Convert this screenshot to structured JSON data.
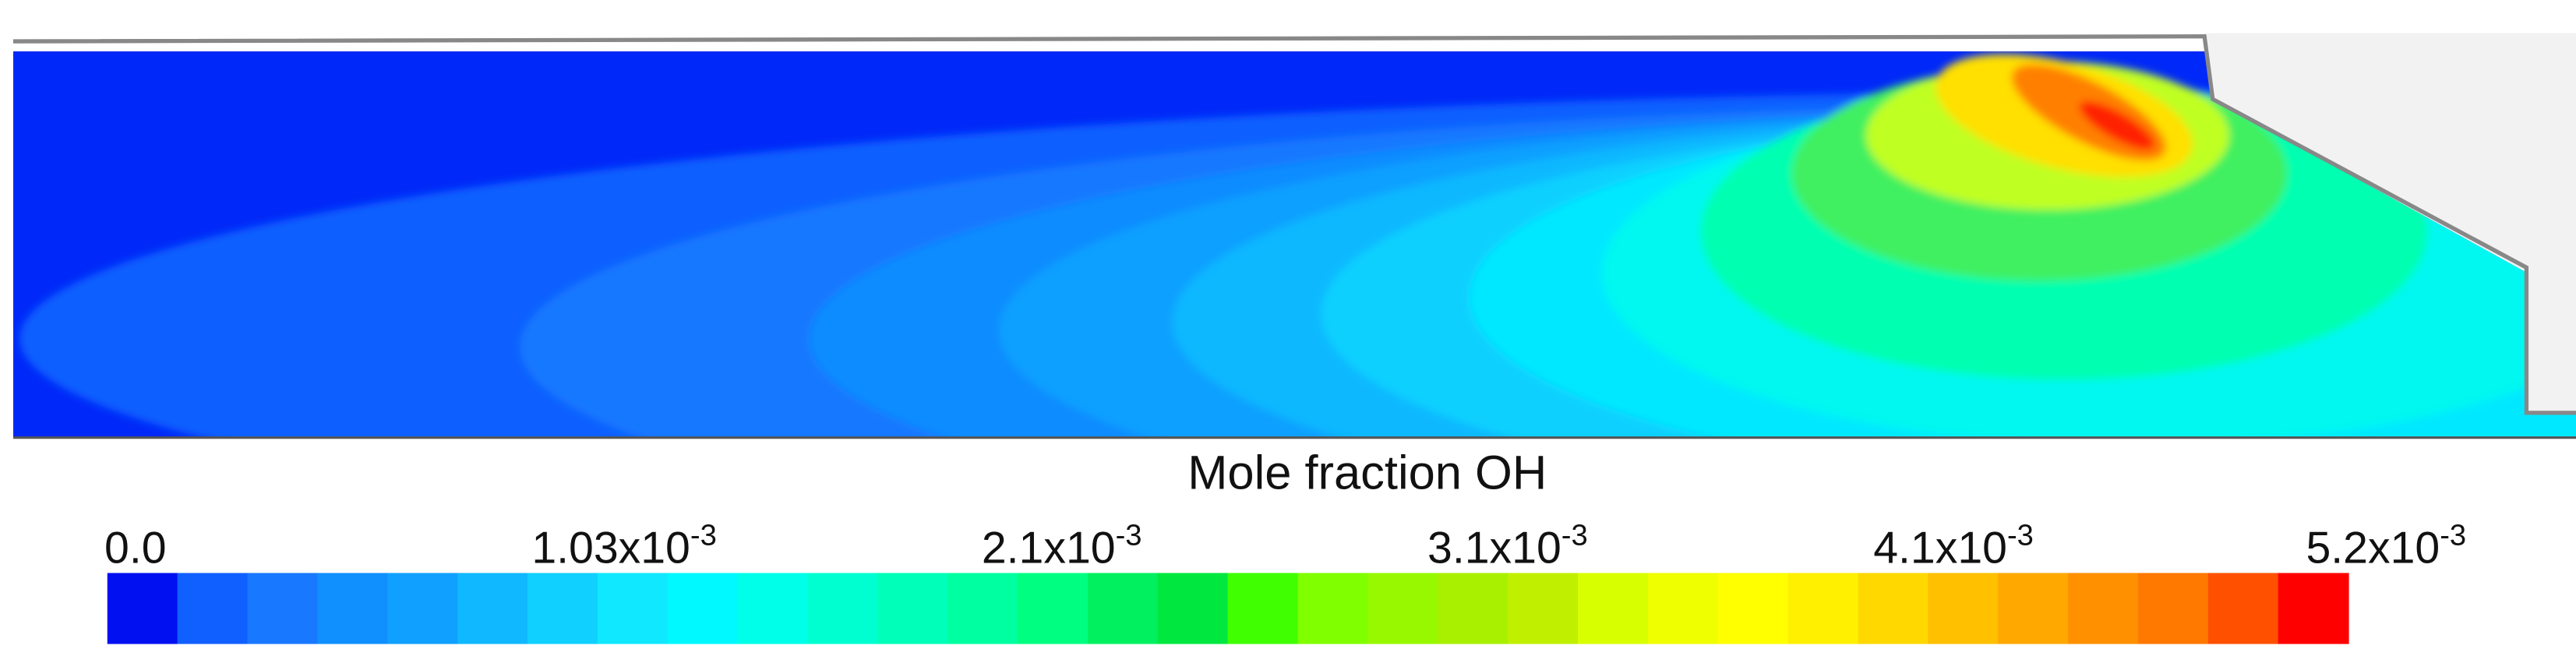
{
  "colorbar": {
    "title": "Mole fraction OH",
    "ticks": [
      "0.0",
      {
        "base": "1.03x10",
        "exponent": "-3"
      },
      {
        "base": "2.1x10",
        "exponent": "-3"
      },
      {
        "base": "3.1x10",
        "exponent": "-3"
      },
      {
        "base": "4.1x10",
        "exponent": "-3"
      },
      {
        "base": "5.2x10",
        "exponent": "-3"
      }
    ],
    "colors": [
      "#0010f0",
      "#1060ff",
      "#1878ff",
      "#1090ff",
      "#10a0ff",
      "#10b8ff",
      "#10d0ff",
      "#10e8ff",
      "#00f8ff",
      "#00ffe8",
      "#00ffd0",
      "#00ffb8",
      "#00ffa0",
      "#00ff80",
      "#00f060",
      "#00e840",
      "#40ff00",
      "#80ff00",
      "#98f800",
      "#a8f000",
      "#c0f000",
      "#d8ff00",
      "#f0ff00",
      "#ffff00",
      "#fff000",
      "#ffd800",
      "#ffc000",
      "#ffa800",
      "#ff9000",
      "#ff7800",
      "#ff5000",
      "#ff0000"
    ]
  }
}
